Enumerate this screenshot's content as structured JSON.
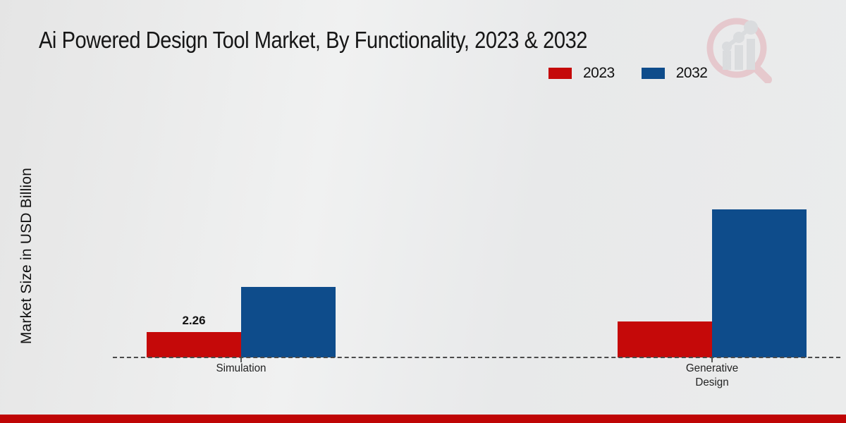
{
  "chart_data": {
    "type": "bar",
    "title": "Ai Powered Design Tool Market, By Functionality, 2023 & 2032",
    "ylabel": "Market Size in USD Billion",
    "xlabel": "",
    "categories": [
      "Simulation",
      "Generative Design"
    ],
    "series": [
      {
        "name": "2023",
        "color": "#c50909",
        "values": [
          2.26,
          3.2
        ]
      },
      {
        "name": "2032",
        "color": "#0e4c8b",
        "values": [
          6.3,
          13.2
        ]
      }
    ],
    "annotations": [
      {
        "text": "2.26",
        "series": "2023",
        "category": "Simulation"
      }
    ],
    "ylim": [
      0,
      14
    ],
    "grid": false,
    "legend_position": "top-right",
    "baseline_style": "dashed"
  },
  "branding": {
    "watermark_icon": "magnifier-bar-chart-icon",
    "watermark_circle_color": "#e3aeb5",
    "watermark_bar_color": "#cdd0d5",
    "footer_color": "#bf0505"
  }
}
